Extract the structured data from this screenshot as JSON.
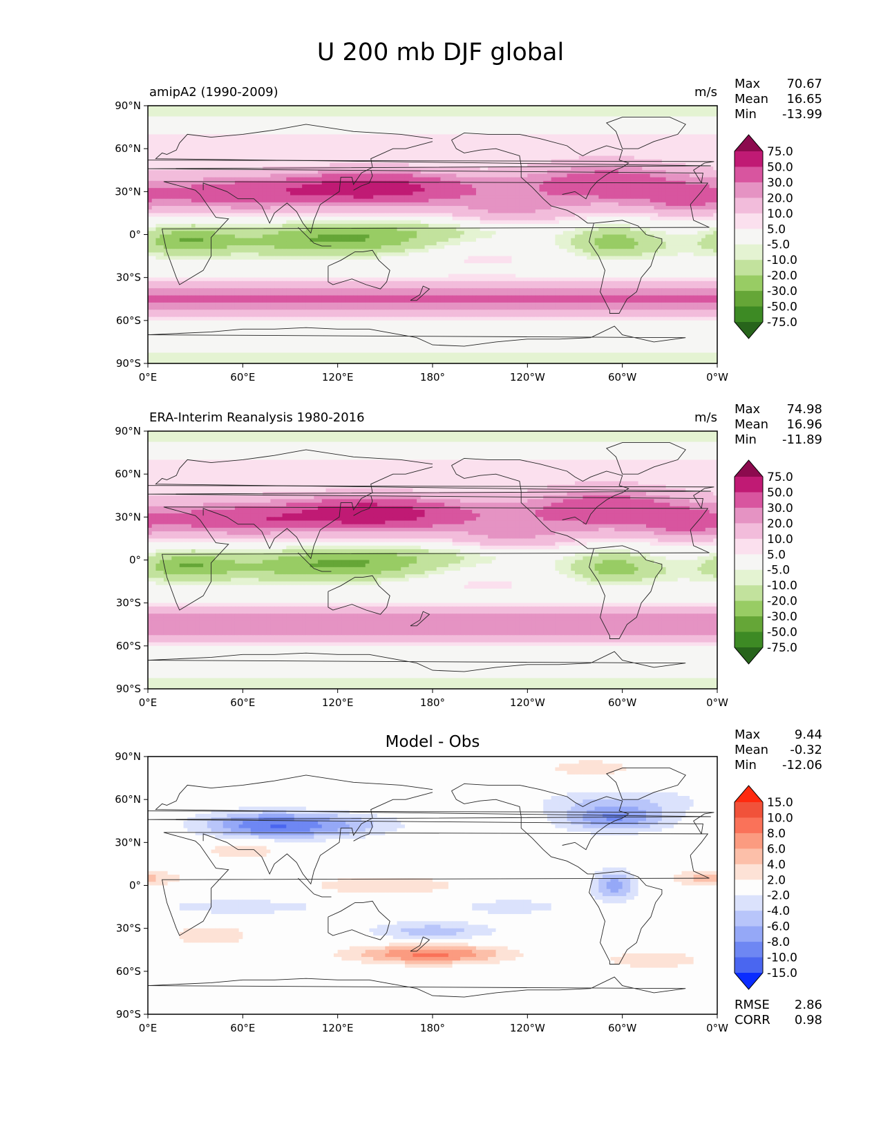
{
  "figure": {
    "title": "U 200 mb DJF global"
  },
  "chart_data": [
    {
      "type": "heatmap",
      "title": "amipA2 (1990-2009)",
      "units": "m/s",
      "stats": {
        "max_label": "Max",
        "max": "70.67",
        "mean_label": "Mean",
        "mean": "16.65",
        "min_label": "Min",
        "min": "-13.99"
      },
      "x_ticks": [
        "0°E",
        "60°E",
        "120°E",
        "180°",
        "120°W",
        "60°W",
        "0°W"
      ],
      "y_ticks": [
        "90°N",
        "60°N",
        "30°N",
        "0°",
        "30°S",
        "60°S",
        "90°S"
      ],
      "colorbar": {
        "levels": [
          "75.0",
          "50.0",
          "30.0",
          "20.0",
          "10.0",
          "5.0",
          "-5.0",
          "-10.0",
          "-20.0",
          "-30.0",
          "-50.0",
          "-75.0"
        ],
        "colors": [
          "#8c0a4e",
          "#c01a74",
          "#d8559f",
          "#e593c3",
          "#f2bcdb",
          "#fbe0ee",
          "#f6f6f4",
          "#e4f3d2",
          "#c2e29d",
          "#98cc64",
          "#65a637",
          "#3d8a24",
          "#27641b"
        ]
      },
      "field": "model"
    },
    {
      "type": "heatmap",
      "title": "ERA-Interim Reanalysis 1980-2016",
      "units": "m/s",
      "stats": {
        "max_label": "Max",
        "max": "74.98",
        "mean_label": "Mean",
        "mean": "16.96",
        "min_label": "Min",
        "min": "-11.89"
      },
      "x_ticks": [
        "0°E",
        "60°E",
        "120°E",
        "180°",
        "120°W",
        "60°W",
        "0°W"
      ],
      "y_ticks": [
        "90°N",
        "60°N",
        "30°N",
        "0°",
        "30°S",
        "60°S",
        "90°S"
      ],
      "colorbar": {
        "levels": [
          "75.0",
          "50.0",
          "30.0",
          "20.0",
          "10.0",
          "5.0",
          "-5.0",
          "-10.0",
          "-20.0",
          "-30.0",
          "-50.0",
          "-75.0"
        ],
        "colors": [
          "#8c0a4e",
          "#c01a74",
          "#d8559f",
          "#e593c3",
          "#f2bcdb",
          "#fbe0ee",
          "#f6f6f4",
          "#e4f3d2",
          "#c2e29d",
          "#98cc64",
          "#65a637",
          "#3d8a24",
          "#27641b"
        ]
      },
      "field": "obs"
    },
    {
      "type": "heatmap",
      "title": "Model - Obs",
      "units": "",
      "stats": {
        "max_label": "Max",
        "max": "9.44",
        "mean_label": "Mean",
        "mean": "-0.32",
        "min_label": "Min",
        "min": "-12.06"
      },
      "x_ticks": [
        "0°E",
        "60°E",
        "120°E",
        "180°",
        "120°W",
        "60°W",
        "0°W"
      ],
      "y_ticks": [
        "90°N",
        "60°N",
        "30°N",
        "0°",
        "30°S",
        "60°S",
        "90°S"
      ],
      "colorbar": {
        "levels": [
          "15.0",
          "10.0",
          "8.0",
          "6.0",
          "4.0",
          "2.0",
          "-2.0",
          "-4.0",
          "-6.0",
          "-8.0",
          "-10.0",
          "-15.0"
        ],
        "colors": [
          "#ff2a0e",
          "#f1523a",
          "#fa7259",
          "#fb9b80",
          "#fcbfa9",
          "#fde2d6",
          "#fdfdfd",
          "#dbe2fc",
          "#b8c5fa",
          "#95a8f7",
          "#6e87f3",
          "#4a66f0",
          "#0a2cff"
        ]
      },
      "field": "diff",
      "metrics": {
        "rmse_label": "RMSE",
        "rmse": "2.86",
        "corr_label": "CORR",
        "corr": "0.98"
      }
    }
  ]
}
